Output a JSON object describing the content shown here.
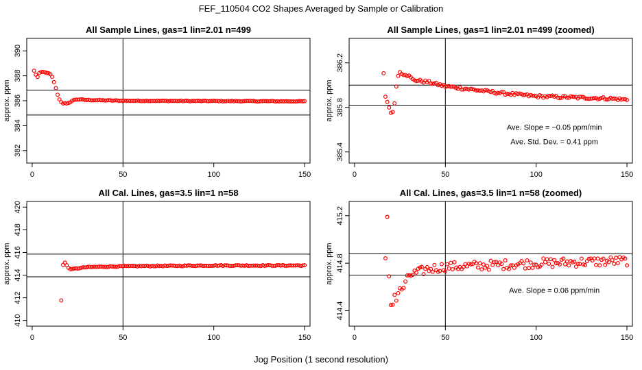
{
  "title": "FEF_110504  CO2 Shapes Averaged by Sample or Calibration",
  "xlabel": "Jog Position (1 second resolution)",
  "chart_data": [
    {
      "type": "scatter",
      "title": "All Sample Lines, gas=1 lin=2.01 n=499",
      "ylabel": "approx. ppm",
      "xlim": [
        -3,
        153
      ],
      "ylim": [
        381,
        391
      ],
      "xticks": [
        0,
        50,
        100,
        150
      ],
      "yticks": [
        382,
        384,
        386,
        388,
        390
      ],
      "vline": 50,
      "hlines": [
        384.85,
        386.85
      ],
      "marker_color": "#ff0000",
      "annotations": [],
      "series": [
        {
          "x": [],
          "y": [],
          "profile": [
            [
              1,
              388.4
            ],
            [
              2,
              388.1
            ],
            [
              3,
              387.9
            ],
            [
              4,
              388.2
            ],
            [
              5,
              388.3
            ],
            [
              6,
              388.3
            ],
            [
              7,
              388.3
            ],
            [
              8,
              388.2
            ],
            [
              9,
              388.2
            ],
            [
              10,
              388.1
            ],
            [
              11,
              387.9
            ],
            [
              12,
              387.5
            ],
            [
              13,
              387.0
            ],
            [
              14,
              386.5
            ],
            [
              15,
              386.1
            ],
            [
              16,
              385.9
            ],
            [
              17,
              385.8
            ],
            [
              18,
              385.8
            ],
            [
              19,
              385.75
            ],
            [
              20,
              385.8
            ],
            [
              21,
              385.9
            ],
            [
              22,
              386.0
            ],
            [
              23,
              386.05
            ],
            [
              24,
              386.1
            ],
            [
              25,
              386.1
            ],
            [
              26,
              386.1
            ],
            [
              28,
              386.08
            ],
            [
              30,
              386.06
            ],
            [
              40,
              386.03
            ],
            [
              50,
              386.0
            ],
            [
              150,
              385.95
            ]
          ],
          "range": [
            1,
            150
          ],
          "noise": 0.03
        }
      ]
    },
    {
      "type": "scatter",
      "title": "All Sample Lines, gas=1 lin=2.01 n=499 (zoomed)",
      "ylabel": "approx. ppm",
      "xlim": [
        -3,
        153
      ],
      "ylim": [
        385.3,
        386.42
      ],
      "xticks": [
        0,
        50,
        100,
        150
      ],
      "yticks": [
        385.4,
        385.8,
        386.2
      ],
      "vline": 50,
      "hlines": [
        385.82,
        386.0
      ],
      "marker_color": "#ff0000",
      "annotations": [
        {
          "text": "Ave. Slope =  −0.05  ppm/min",
          "x": 110,
          "y": 385.6
        },
        {
          "text": "Ave. Std. Dev. =  0.41  ppm",
          "x": 110,
          "y": 385.47
        }
      ],
      "series": [
        {
          "x": [],
          "y": [],
          "profile": [
            [
              16,
              386.1
            ],
            [
              17,
              385.9
            ],
            [
              18,
              385.85
            ],
            [
              19,
              385.8
            ],
            [
              20,
              385.76
            ],
            [
              21,
              385.75
            ],
            [
              22,
              385.84
            ],
            [
              23,
              386.0
            ],
            [
              24,
              386.08
            ],
            [
              25,
              386.12
            ],
            [
              26,
              386.11
            ],
            [
              27,
              386.1
            ],
            [
              28,
              386.1
            ],
            [
              29,
              386.09
            ],
            [
              30,
              386.08
            ],
            [
              32,
              386.05
            ],
            [
              35,
              386.04
            ],
            [
              40,
              386.03
            ],
            [
              45,
              386.01
            ],
            [
              50,
              385.99
            ],
            [
              60,
              385.97
            ],
            [
              80,
              385.93
            ],
            [
              100,
              385.9
            ],
            [
              120,
              385.89
            ],
            [
              140,
              385.88
            ],
            [
              150,
              385.87
            ]
          ],
          "range": [
            16,
            150
          ],
          "noise": 0.012
        }
      ]
    },
    {
      "type": "scatter",
      "title": "All Cal. Lines, gas=3.5 lin=1 n=58",
      "ylabel": "approx. ppm",
      "xlim": [
        -3,
        153
      ],
      "ylim": [
        409.5,
        420.5
      ],
      "xticks": [
        0,
        50,
        100,
        150
      ],
      "yticks": [
        410,
        412,
        414,
        416,
        418,
        420
      ],
      "vline": 50,
      "hlines": [
        413.85,
        415.85
      ],
      "marker_color": "#ff0000",
      "annotations": [],
      "series": [
        {
          "x": [],
          "y": [],
          "profile": [
            [
              16,
              411.8
            ],
            [
              17,
              414.9
            ],
            [
              18,
              415.1
            ],
            [
              19,
              414.85
            ],
            [
              20,
              414.65
            ],
            [
              21,
              414.55
            ],
            [
              22,
              414.5
            ],
            [
              23,
              414.55
            ],
            [
              25,
              414.6
            ],
            [
              30,
              414.7
            ],
            [
              40,
              414.75
            ],
            [
              60,
              414.8
            ],
            [
              100,
              414.85
            ],
            [
              150,
              414.85
            ]
          ],
          "range": [
            16,
            150
          ],
          "noise": 0.04
        }
      ]
    },
    {
      "type": "scatter",
      "title": "All Cal. Lines, gas=3.5 lin=1 n=58 (zoomed)",
      "ylabel": "approx. ppm",
      "xlim": [
        -3,
        153
      ],
      "ylim": [
        414.27,
        415.32
      ],
      "xticks": [
        0,
        50,
        100,
        150
      ],
      "yticks": [
        414.4,
        414.8,
        415.2
      ],
      "vline": 50,
      "hlines": [
        414.7,
        414.88
      ],
      "marker_color": "#ff0000",
      "annotations": [
        {
          "text": "Ave. Slope =  0.06  ppm/min",
          "x": 110,
          "y": 414.55
        }
      ],
      "series": [
        {
          "x": [],
          "y": [],
          "profile": [
            [
              17,
              414.82
            ],
            [
              18,
              415.16
            ],
            [
              19,
              414.7
            ],
            [
              20,
              414.45
            ],
            [
              21,
              414.48
            ],
            [
              22,
              414.53
            ],
            [
              23,
              414.5
            ],
            [
              24,
              414.55
            ],
            [
              26,
              414.58
            ],
            [
              28,
              414.62
            ],
            [
              30,
              414.7
            ],
            [
              35,
              414.72
            ],
            [
              40,
              414.75
            ],
            [
              50,
              414.77
            ],
            [
              70,
              414.78
            ],
            [
              100,
              414.8
            ],
            [
              150,
              414.82
            ]
          ],
          "range": [
            17,
            150
          ],
          "noise": 0.04
        }
      ]
    }
  ]
}
